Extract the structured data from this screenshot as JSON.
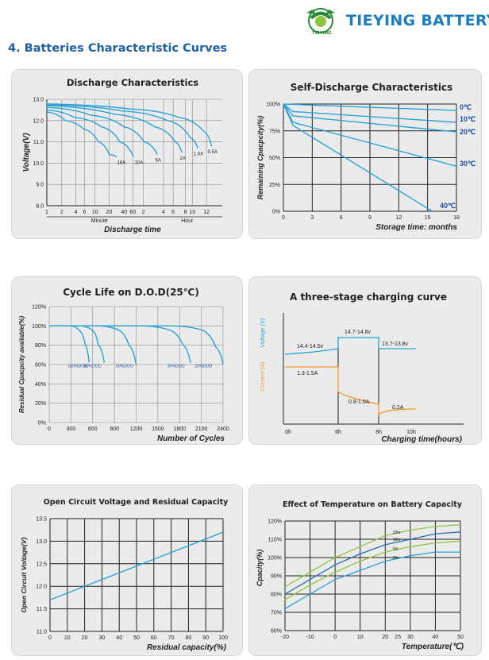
{
  "brand": {
    "name": "TIEYING BATTERY",
    "logo_text": "TIEYING",
    "primary_color": "#1b7fbf",
    "logo_color": "#2a8a3a"
  },
  "section_title": "4.  Batteries Characteristic Curves",
  "colors": {
    "curve": "#29a2d8",
    "orange": "#f39a2c",
    "green": "#8cc63f",
    "blue": "#1f6fb2"
  },
  "chart_data": [
    {
      "id": "discharge",
      "type": "line",
      "title": "Discharge Characteristics",
      "ylabel": "Voltage(V)",
      "xlabel": "Discharge time",
      "ylim": [
        8.0,
        13.0
      ],
      "yticks": [
        "13.0",
        "12.0",
        "11.0",
        "10.0",
        "9.0",
        "8.0"
      ],
      "xticks": [
        "1",
        "2",
        "4",
        "6",
        "10",
        "20",
        "40",
        "60",
        "2",
        "4",
        "6",
        "8",
        "10",
        "12"
      ],
      "x_unit_labels": [
        "Minute",
        "Hour"
      ],
      "series": [
        {
          "name": "18A",
          "end_label": "18A",
          "x_end": "15 min",
          "points": [
            [
              0,
              12.4
            ],
            [
              0.25,
              12.0
            ],
            [
              0.5,
              11.6
            ],
            [
              0.7,
              11.0
            ],
            [
              0.85,
              10.4
            ],
            [
              0.95,
              10.3
            ]
          ]
        },
        {
          "name": "10A",
          "end_label": "10A",
          "x_end": "25 min",
          "points": [
            [
              0,
              12.5
            ],
            [
              0.3,
              12.15
            ],
            [
              0.6,
              11.7
            ],
            [
              0.8,
              11.0
            ],
            [
              0.95,
              10.3
            ]
          ]
        },
        {
          "name": "5A",
          "end_label": "5A",
          "x_end": "1 h",
          "points": [
            [
              0,
              12.62
            ],
            [
              0.4,
              12.25
            ],
            [
              0.7,
              11.7
            ],
            [
              0.88,
              11.0
            ],
            [
              1.0,
              10.4
            ]
          ]
        },
        {
          "name": "2A",
          "end_label": "2A",
          "x_end": "4 h",
          "points": [
            [
              0,
              12.7
            ],
            [
              0.5,
              12.3
            ],
            [
              0.8,
              11.7
            ],
            [
              0.95,
              11.0
            ],
            [
              1.0,
              10.5
            ]
          ]
        },
        {
          "name": "1.0A",
          "end_label": "1.0A",
          "x_end": "9 h",
          "points": [
            [
              0,
              12.75
            ],
            [
              0.5,
              12.45
            ],
            [
              0.8,
              12.0
            ],
            [
              0.95,
              11.2
            ],
            [
              1.0,
              10.7
            ]
          ]
        },
        {
          "name": "0.5A",
          "end_label": "0.5A",
          "x_end": "13 h",
          "points": [
            [
              0,
              12.78
            ],
            [
              0.5,
              12.55
            ],
            [
              0.8,
              12.15
            ],
            [
              0.95,
              11.5
            ],
            [
              1.0,
              10.8
            ]
          ]
        }
      ]
    },
    {
      "id": "self_discharge",
      "type": "line",
      "title": "Self-Discharge Characteristics",
      "ylabel": "Remaining Cpacpcity(%)",
      "xlabel": "Storage time: months",
      "ylim": [
        0,
        100
      ],
      "yticks": [
        "100%",
        "75%",
        "50%",
        "25%",
        "0%"
      ],
      "xticks": [
        "0",
        "3",
        "6",
        "9",
        "12",
        "15",
        "18"
      ],
      "series": [
        {
          "name": "0℃",
          "label": "0",
          "points": [
            [
              0,
              100
            ],
            [
              18,
              94
            ]
          ]
        },
        {
          "name": "10℃",
          "label": "10",
          "points": [
            [
              0,
              100
            ],
            [
              1,
              93
            ],
            [
              18,
              83
            ]
          ]
        },
        {
          "name": "20℃",
          "label": "20",
          "points": [
            [
              0,
              100
            ],
            [
              1,
              89
            ],
            [
              18,
              74
            ]
          ]
        },
        {
          "name": "30℃",
          "label": "30",
          "points": [
            [
              0,
              100
            ],
            [
              1,
              83
            ],
            [
              18,
              42
            ]
          ]
        },
        {
          "name": "40℃",
          "label": "40",
          "points": [
            [
              0,
              100
            ],
            [
              1,
              80
            ],
            [
              15.5,
              0
            ]
          ]
        }
      ]
    },
    {
      "id": "cycle_life",
      "type": "line",
      "title": "Cycle Life on D.O.D(25℃)",
      "ylabel": "Residual Cpacpcity available(%)",
      "xlabel": "Number of Cycles",
      "ylim": [
        0,
        120
      ],
      "yticks": [
        "120%",
        "100%",
        "80%",
        "60%",
        "40%",
        "20%",
        "0%"
      ],
      "xticks": [
        "0",
        "300",
        "600",
        "900",
        "1200",
        "1500",
        "1800",
        "2100",
        "2400"
      ],
      "series": [
        {
          "name": "100%DOD",
          "label": "100%DOD",
          "points": [
            [
              0,
              100
            ],
            [
              300,
              100
            ],
            [
              420,
              95
            ],
            [
              500,
              80
            ],
            [
              550,
              62
            ]
          ]
        },
        {
          "name": "80%DOD",
          "label": "80%DOD",
          "points": [
            [
              0,
              100
            ],
            [
              450,
              100
            ],
            [
              600,
              95
            ],
            [
              680,
              80
            ],
            [
              760,
              62
            ]
          ]
        },
        {
          "name": "50%DOD",
          "label": "50%DOD",
          "points": [
            [
              0,
              100
            ],
            [
              700,
              100
            ],
            [
              950,
              96
            ],
            [
              1100,
              80
            ],
            [
              1200,
              60
            ]
          ]
        },
        {
          "name": "30%DOD",
          "label": "30%DOD",
          "points": [
            [
              0,
              100
            ],
            [
              1300,
              100
            ],
            [
              1650,
              96
            ],
            [
              1850,
              80
            ],
            [
              1950,
              62
            ]
          ]
        },
        {
          "name": "20%DOD",
          "label": "20%DOD",
          "points": [
            [
              0,
              100
            ],
            [
              1700,
              100
            ],
            [
              2100,
              96
            ],
            [
              2300,
              78
            ],
            [
              2400,
              60
            ]
          ]
        }
      ]
    },
    {
      "id": "three_stage",
      "type": "line",
      "title": "A three-stage charging curve",
      "ylabel_voltage": "Voltage (V)",
      "ylabel_current": "Current (A)",
      "xlabel": "Charging time(hours)",
      "xticks": [
        "0h",
        "6h",
        "8h",
        "10h"
      ],
      "annotations": [
        "14.4-14.5v",
        "14.7-14.8v",
        "13.7-13.8v",
        "1.3-1.5A",
        "0.8-1.0A",
        "0.2A"
      ]
    },
    {
      "id": "ocv",
      "type": "line",
      "title": "Open Circuit Voltage and Residual Capacity",
      "ylabel": "Open Circuit Voltage(V)",
      "xlabel": "Residual capacity(%)",
      "ylim": [
        11.0,
        13.5
      ],
      "xlim": [
        0,
        100
      ],
      "yticks": [
        "13.5",
        "13.0",
        "12.5",
        "12.0",
        "11.5",
        "11.0"
      ],
      "xticks": [
        "0",
        "10",
        "20",
        "30",
        "40",
        "50",
        "60",
        "70",
        "80",
        "90",
        "100"
      ],
      "series": [
        {
          "points": [
            [
              0,
              11.7
            ],
            [
              100,
              13.2
            ]
          ]
        }
      ]
    },
    {
      "id": "temperature",
      "type": "line",
      "title": "Effect of Temperature on Battery Capacity",
      "ylabel": "Cpacity(%)",
      "xlabel": "Temperature(℃)",
      "ylim": [
        60,
        120
      ],
      "xlim": [
        -20,
        50
      ],
      "yticks": [
        "120%",
        "110%",
        "100%",
        "90%",
        "80%",
        "70%",
        "60%"
      ],
      "xticks": [
        "-20",
        "-10",
        "0",
        "10",
        "20",
        "25",
        "30",
        "40",
        "50"
      ],
      "series": [
        {
          "name": "20hr",
          "label": "20hr",
          "color": "#8cc63f",
          "points": [
            [
              -20,
              84
            ],
            [
              -10,
              92
            ],
            [
              0,
              100
            ],
            [
              10,
              106
            ],
            [
              20,
              112
            ],
            [
              30,
              115
            ],
            [
              40,
              117
            ],
            [
              50,
              118
            ]
          ]
        },
        {
          "name": "10hr",
          "label": "10hr",
          "color": "#1f6fb2",
          "points": [
            [
              -20,
              80
            ],
            [
              -10,
              88
            ],
            [
              0,
              96
            ],
            [
              10,
              102
            ],
            [
              20,
              107
            ],
            [
              30,
              110
            ],
            [
              40,
              113
            ],
            [
              50,
              114
            ]
          ]
        },
        {
          "name": "5hr",
          "label": "5hr",
          "color": "#8cc63f",
          "points": [
            [
              -20,
              77
            ],
            [
              -10,
              85
            ],
            [
              0,
              92
            ],
            [
              10,
              98
            ],
            [
              20,
              103
            ],
            [
              30,
              106
            ],
            [
              40,
              108
            ],
            [
              50,
              109
            ]
          ]
        },
        {
          "name": "2hr",
          "label": "2hr",
          "color": "#29a2d8",
          "points": [
            [
              -20,
              72
            ],
            [
              -10,
              80
            ],
            [
              0,
              88
            ],
            [
              10,
              93
            ],
            [
              20,
              98
            ],
            [
              30,
              101
            ],
            [
              40,
              103
            ],
            [
              50,
              103
            ]
          ]
        }
      ]
    }
  ]
}
